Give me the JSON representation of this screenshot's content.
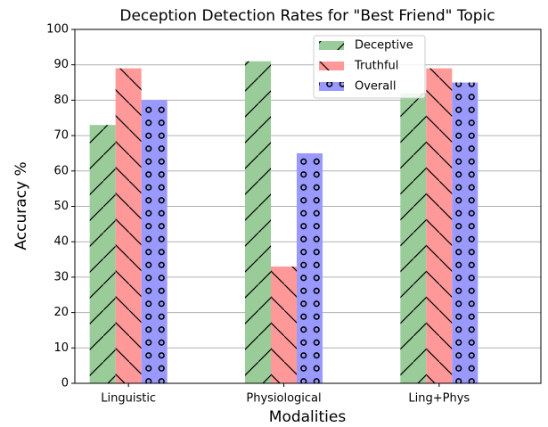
{
  "chart_data": {
    "type": "bar",
    "title": "Deception Detection Rates for \"Best Friend\" Topic",
    "xlabel": "Modalities",
    "ylabel": "Accuracy %",
    "categories": [
      "Linguistic",
      "Physiological",
      "Ling+Phys"
    ],
    "series": [
      {
        "name": "Deceptive",
        "color": "#99cc99",
        "hatch": "/",
        "values": [
          73,
          91,
          82
        ]
      },
      {
        "name": "Truthful",
        "color": "#ff9999",
        "hatch": "\\",
        "values": [
          89,
          33,
          89
        ]
      },
      {
        "name": "Overall",
        "color": "#9999ff",
        "hatch": "o",
        "values": [
          80,
          65,
          85
        ]
      }
    ],
    "ylim": [
      0,
      100
    ],
    "yticks": [
      0,
      10,
      20,
      30,
      40,
      50,
      60,
      70,
      80,
      90,
      100
    ],
    "grid": true,
    "legend": "upper center"
  }
}
